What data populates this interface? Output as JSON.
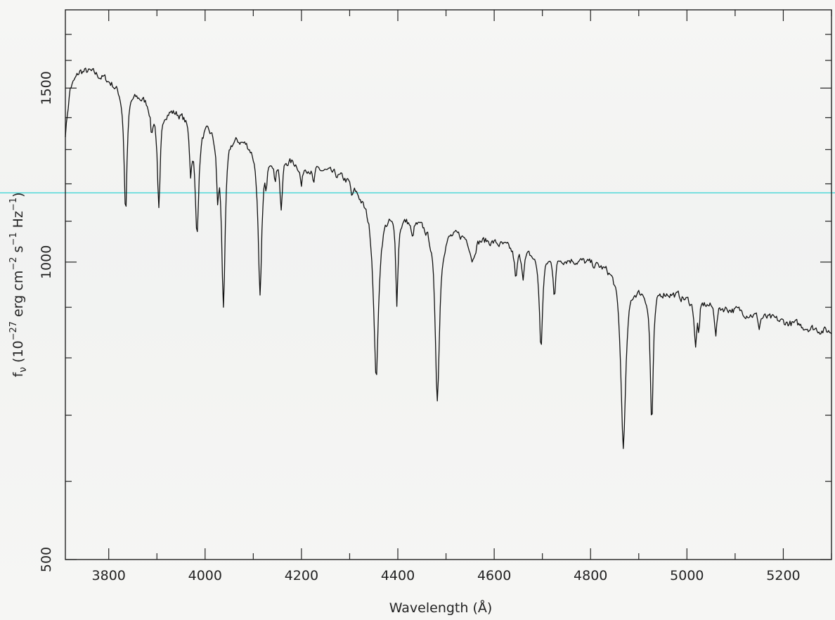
{
  "chart_data": {
    "type": "line",
    "title": "",
    "xlabel": "Wavelength (Å)",
    "ylabel": "f_ν (10^-27 erg cm^-2 s^-1 Hz^-1)",
    "ylabel_parts": {
      "f": "f",
      "nu": "ν",
      "open": " (10",
      "exp1": "−27",
      "erg_cm": " erg cm",
      "exp2": "−2",
      "s": " s",
      "exp3": "−1",
      "hz": " Hz",
      "exp4": "−1",
      "close": ")"
    },
    "xlim": [
      3710,
      5300
    ],
    "ylim": [
      500,
      1800
    ],
    "yscale": "log",
    "x_ticks": [
      3800,
      4000,
      4200,
      4400,
      4600,
      4800,
      5000,
      5200
    ],
    "x_tick_labels": [
      "3800",
      "4000",
      "4200",
      "4400",
      "4600",
      "4800",
      "5000",
      "5200"
    ],
    "x_minor_ticks": [
      3700,
      3900,
      4100,
      4300,
      4500,
      4700,
      4900,
      5100,
      5300
    ],
    "y_ticks": [
      500,
      1000,
      1500
    ],
    "y_tick_labels": [
      "500",
      "1000",
      "1500"
    ],
    "y_minor_ticks": [
      600,
      700,
      800,
      900,
      1100,
      1200,
      1300,
      1400,
      1600,
      1700
    ],
    "reference_line": {
      "y": 1175,
      "color": "#35d4d4"
    },
    "continuum": {
      "x": [
        3710,
        3720,
        3740,
        3760,
        3790,
        3820,
        3860,
        3900,
        3950,
        4000,
        4060,
        4120,
        4180,
        4250,
        4300,
        4330,
        4380,
        4450,
        4520,
        4600,
        4650,
        4700,
        4780,
        4850,
        4900,
        4950,
        5000,
        5100,
        5200,
        5300
      ],
      "y": [
        1350,
        1500,
        1560,
        1560,
        1540,
        1510,
        1480,
        1450,
        1420,
        1390,
        1350,
        1310,
        1270,
        1240,
        1215,
        1165,
        1130,
        1100,
        1075,
        1050,
        1030,
        1020,
        1005,
        990,
        950,
        940,
        920,
        895,
        870,
        850
      ]
    },
    "absorption_lines": [
      {
        "x": 3835,
        "depth": 0.25,
        "width": 4
      },
      {
        "x": 3889,
        "depth": 0.06,
        "width": 3
      },
      {
        "x": 3904,
        "depth": 0.22,
        "width": 4
      },
      {
        "x": 3970,
        "depth": 0.1,
        "width": 3
      },
      {
        "x": 3983,
        "depth": 0.23,
        "width": 5
      },
      {
        "x": 4026,
        "depth": 0.12,
        "width": 3
      },
      {
        "x": 4038,
        "depth": 0.33,
        "width": 5
      },
      {
        "x": 4114,
        "depth": 0.3,
        "width": 5
      },
      {
        "x": 4127,
        "depth": 0.07,
        "width": 2
      },
      {
        "x": 4145,
        "depth": 0.06,
        "width": 2
      },
      {
        "x": 4158,
        "depth": 0.12,
        "width": 3
      },
      {
        "x": 4200,
        "depth": 0.05,
        "width": 3
      },
      {
        "x": 4225,
        "depth": 0.04,
        "width": 3
      },
      {
        "x": 4305,
        "depth": 0.03,
        "width": 3
      },
      {
        "x": 4355,
        "depth": 0.33,
        "width": 7
      },
      {
        "x": 4398,
        "depth": 0.18,
        "width": 3
      },
      {
        "x": 4430,
        "depth": 0.04,
        "width": 3
      },
      {
        "x": 4482,
        "depth": 0.33,
        "width": 6
      },
      {
        "x": 4555,
        "depth": 0.05,
        "width": 6
      },
      {
        "x": 4645,
        "depth": 0.07,
        "width": 3
      },
      {
        "x": 4660,
        "depth": 0.05,
        "width": 3
      },
      {
        "x": 4697,
        "depth": 0.2,
        "width": 4
      },
      {
        "x": 4725,
        "depth": 0.08,
        "width": 3
      },
      {
        "x": 4868,
        "depth": 0.33,
        "width": 7
      },
      {
        "x": 4927,
        "depth": 0.27,
        "width": 4
      },
      {
        "x": 5018,
        "depth": 0.1,
        "width": 3
      },
      {
        "x": 5025,
        "depth": 0.06,
        "width": 2
      },
      {
        "x": 5060,
        "depth": 0.06,
        "width": 3
      },
      {
        "x": 5150,
        "depth": 0.03,
        "width": 2
      }
    ],
    "noise_amplitude": 0.008,
    "step": 2
  }
}
